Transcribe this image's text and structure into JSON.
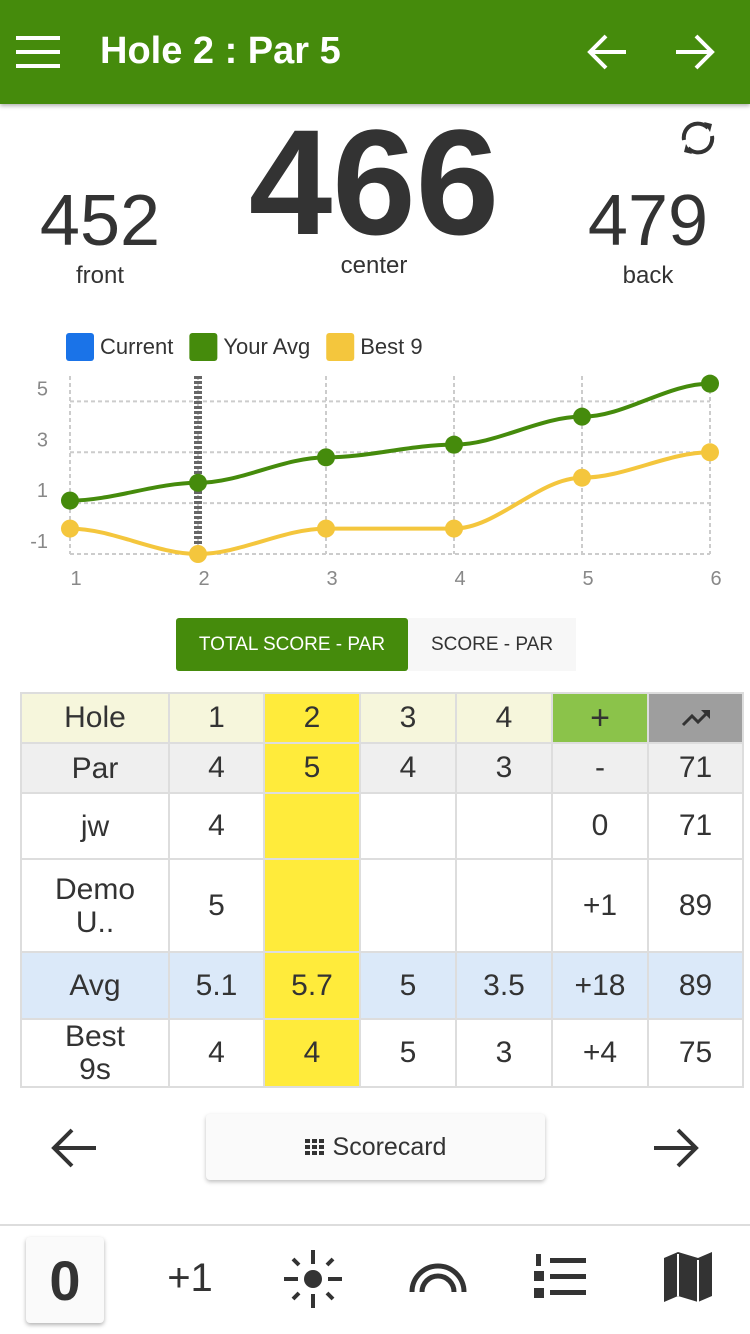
{
  "header": {
    "title": "Hole 2 : Par 5"
  },
  "distances": {
    "front": {
      "value": "452",
      "label": "front"
    },
    "center": {
      "value": "466",
      "label": "center"
    },
    "back": {
      "value": "479",
      "label": "back"
    }
  },
  "chart_data": {
    "type": "line",
    "x": [
      1,
      2,
      3,
      4,
      5,
      6
    ],
    "xlim": [
      1,
      6
    ],
    "xticks": [
      1,
      2,
      3,
      4,
      5,
      6
    ],
    "ylim": [
      -1,
      6
    ],
    "yticks": [
      -1,
      1,
      3,
      5
    ],
    "grid": true,
    "current_x": 2,
    "series": [
      {
        "name": "Current",
        "color": "#1a73e8",
        "values": [
          null,
          null,
          null,
          null,
          null,
          null
        ]
      },
      {
        "name": "Your Avg",
        "color": "#458b0c",
        "values": [
          1.1,
          1.8,
          2.8,
          3.3,
          4.4,
          5.7
        ]
      },
      {
        "name": "Best 9",
        "color": "#f4c63d",
        "values": [
          0,
          -1,
          0,
          0,
          2,
          3
        ]
      }
    ]
  },
  "toggles": [
    "TOTAL SCORE - PAR",
    "SCORE - PAR"
  ],
  "table": {
    "header": [
      "Hole",
      "1",
      "2",
      "3",
      "4",
      "+"
    ],
    "rows": [
      [
        "Par",
        "4",
        "5",
        "4",
        "3",
        "-",
        "71"
      ],
      [
        "jw",
        "4",
        null,
        null,
        null,
        "0",
        "71"
      ],
      [
        "Demo U..",
        "5",
        null,
        null,
        null,
        "+1",
        "89"
      ],
      [
        "Avg",
        "5.1",
        "5.7",
        "5",
        "3.5",
        "+18",
        "89"
      ],
      [
        "Best 9s",
        "4",
        "4",
        "5",
        "3",
        "+4",
        "75"
      ]
    ]
  },
  "nav": {
    "scorecard": "Scorecard"
  },
  "bottom": {
    "score": "0",
    "plus": "+1"
  }
}
